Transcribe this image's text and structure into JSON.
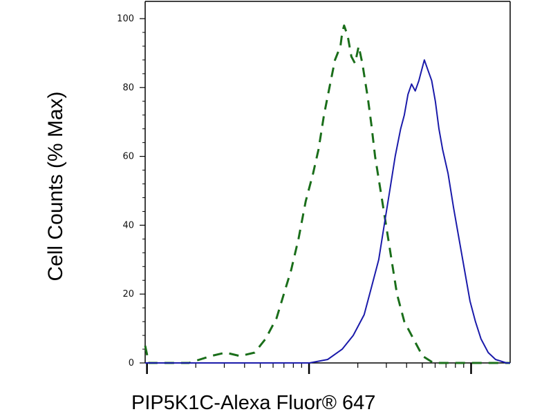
{
  "chart_data": {
    "type": "line",
    "title": "",
    "xlabel": "PIP5K1C-Alexa Fluor® 647",
    "ylabel": "Cell Counts (% Max)",
    "ylim": [
      0,
      100
    ],
    "yticks": [
      "0",
      "20",
      "40",
      "60",
      "80",
      "100"
    ],
    "x_scale": "log",
    "x_tick_labels_shown": false,
    "grid": false,
    "legend": "none",
    "series": [
      {
        "style": "dashed",
        "color": "#1a6e1a",
        "points": [
          [
            0.0,
            5
          ],
          [
            0.01,
            0
          ],
          [
            0.06,
            0
          ],
          [
            0.12,
            0
          ],
          [
            0.18,
            2
          ],
          [
            0.22,
            3
          ],
          [
            0.26,
            2
          ],
          [
            0.3,
            3
          ],
          [
            0.33,
            7
          ],
          [
            0.36,
            13
          ],
          [
            0.38,
            20
          ],
          [
            0.4,
            27
          ],
          [
            0.42,
            36
          ],
          [
            0.44,
            47
          ],
          [
            0.46,
            55
          ],
          [
            0.475,
            62
          ],
          [
            0.49,
            72
          ],
          [
            0.505,
            80
          ],
          [
            0.52,
            88
          ],
          [
            0.535,
            92
          ],
          [
            0.54,
            96
          ],
          [
            0.545,
            98
          ],
          [
            0.555,
            95
          ],
          [
            0.565,
            89
          ],
          [
            0.575,
            87
          ],
          [
            0.585,
            92
          ],
          [
            0.595,
            87
          ],
          [
            0.61,
            77
          ],
          [
            0.62,
            69
          ],
          [
            0.63,
            60
          ],
          [
            0.645,
            50
          ],
          [
            0.66,
            40
          ],
          [
            0.675,
            30
          ],
          [
            0.69,
            20
          ],
          [
            0.71,
            12
          ],
          [
            0.735,
            7
          ],
          [
            0.76,
            2
          ],
          [
            0.79,
            0
          ],
          [
            0.84,
            0
          ],
          [
            1.0,
            0
          ]
        ]
      },
      {
        "style": "solid",
        "color": "#1a1aaa",
        "points": [
          [
            0.0,
            0
          ],
          [
            0.3,
            0
          ],
          [
            0.45,
            0
          ],
          [
            0.5,
            1
          ],
          [
            0.54,
            4
          ],
          [
            0.57,
            8
          ],
          [
            0.6,
            14
          ],
          [
            0.62,
            22
          ],
          [
            0.64,
            30
          ],
          [
            0.655,
            40
          ],
          [
            0.67,
            50
          ],
          [
            0.685,
            60
          ],
          [
            0.7,
            68
          ],
          [
            0.71,
            72
          ],
          [
            0.72,
            78
          ],
          [
            0.73,
            81
          ],
          [
            0.74,
            79
          ],
          [
            0.75,
            82
          ],
          [
            0.755,
            84
          ],
          [
            0.765,
            88
          ],
          [
            0.775,
            85
          ],
          [
            0.785,
            82
          ],
          [
            0.795,
            76
          ],
          [
            0.805,
            68
          ],
          [
            0.815,
            62
          ],
          [
            0.83,
            55
          ],
          [
            0.845,
            45
          ],
          [
            0.86,
            36
          ],
          [
            0.875,
            27
          ],
          [
            0.89,
            18
          ],
          [
            0.905,
            12
          ],
          [
            0.92,
            7
          ],
          [
            0.94,
            3
          ],
          [
            0.96,
            1
          ],
          [
            0.99,
            0
          ],
          [
            1.0,
            0
          ]
        ]
      }
    ]
  }
}
